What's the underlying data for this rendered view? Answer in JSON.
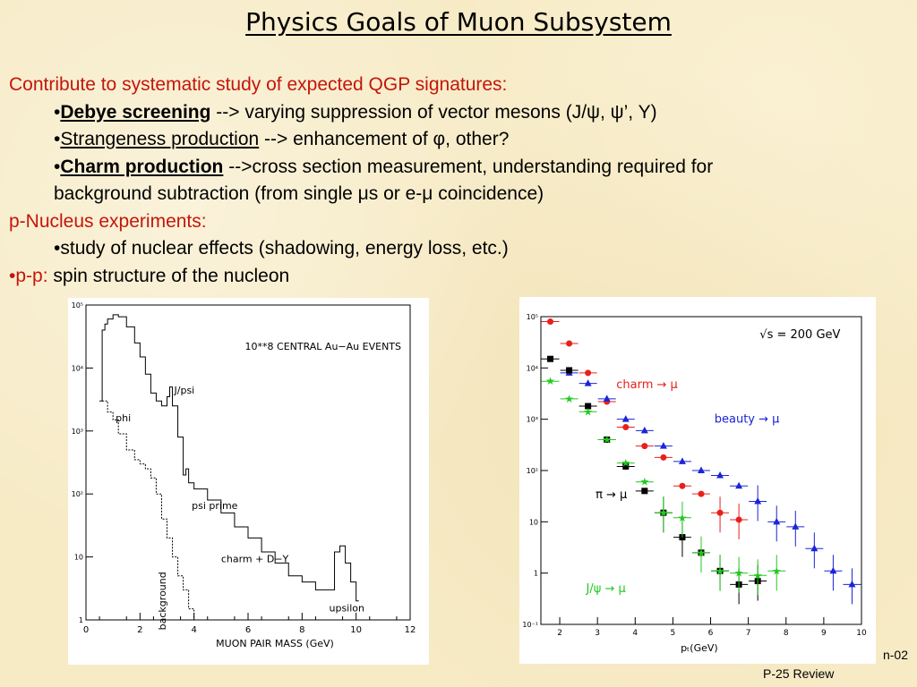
{
  "slide": {
    "title": "Physics Goals of Muon Subsystem",
    "intro": "Contribute to systematic study of expected QGP signatures:",
    "b1_term": "Debye screening",
    "b1_rest": "--> varying suppression of vector mesons (J/ψ, ψ’, Υ)",
    "b2_term": "Strangeness production",
    "b2_rest": "--> enhancement of φ, other?",
    "b3_term": "Charm production",
    "b3_rest": "-->cross section measurement, understanding required for",
    "b3_cont": "background subtraction (from single μs or e-μ coincidence)",
    "pnuc_heading": "p-Nucleus experiments:",
    "pnuc_bullet": "study of nuclear effects (shadowing, energy loss, etc.)",
    "pp_label": "p-p:",
    "pp_text": "spin structure of the nucleon",
    "bullet": "•",
    "footer_partial": "n-02",
    "footer_review": "P-25 Review"
  },
  "colors": {
    "red_text": "#c4160a",
    "charm": "#e8201c",
    "beauty": "#1a24d8",
    "pion": "#000000",
    "jpsi": "#22c81e"
  },
  "chart_data": [
    {
      "type": "line",
      "title": "",
      "annotation": "10**8 CENTRAL Au−Au EVENTS",
      "xlabel": "MUON PAIR MASS (GeV)",
      "xlim": [
        0,
        12
      ],
      "ylim_log": [
        1,
        100000
      ],
      "xticks": [
        "0",
        "2",
        "4",
        "6",
        "8",
        "10",
        "12"
      ],
      "yticks": [
        "1",
        "10",
        "10²",
        "10³",
        "10⁴",
        "10⁵"
      ],
      "series": [
        {
          "name": "total",
          "style": "solid",
          "x": [
            0.5,
            0.6,
            0.7,
            0.8,
            0.9,
            1.0,
            1.2,
            1.5,
            1.8,
            2.0,
            2.2,
            2.4,
            2.6,
            2.8,
            3.0,
            3.1,
            3.2,
            3.4,
            3.6,
            3.7,
            3.8,
            4.0,
            4.5,
            5.0,
            5.5,
            6.0,
            6.5,
            7.0,
            7.5,
            8.0,
            8.5,
            9.0,
            9.2,
            9.4,
            9.6,
            9.8,
            10.0
          ],
          "y": [
            3000,
            40000,
            50000,
            60000,
            60000,
            70000,
            65000,
            45000,
            25000,
            15000,
            8000,
            4000,
            3000,
            2500,
            3500,
            5000,
            2500,
            800,
            200,
            250,
            150,
            120,
            80,
            50,
            30,
            20,
            12,
            8,
            5,
            4,
            3,
            3,
            12,
            15,
            8,
            4,
            2
          ]
        },
        {
          "name": "background",
          "style": "dotted",
          "x": [
            0.6,
            0.8,
            1.0,
            1.2,
            1.5,
            1.8,
            2.0,
            2.2,
            2.4,
            2.6,
            2.8,
            3.0,
            3.2,
            3.4,
            3.6,
            3.8,
            4.0
          ],
          "y": [
            3000,
            2000,
            1500,
            900,
            500,
            350,
            300,
            250,
            180,
            100,
            40,
            20,
            10,
            5,
            3,
            1.5,
            1
          ]
        }
      ],
      "peak_labels": [
        "J/psi",
        "phi",
        "psi prime",
        "charm + D−Y",
        "upsilon",
        "background"
      ]
    },
    {
      "type": "scatter",
      "title": "",
      "annotation": "√s = 200 GeV",
      "xlabel": "pₜ(GeV)",
      "xlim": [
        1.5,
        10
      ],
      "ylim_log": [
        0.1,
        100000
      ],
      "xticks": [
        "2",
        "3",
        "4",
        "5",
        "6",
        "7",
        "8",
        "9",
        "10"
      ],
      "yticks": [
        "10⁻¹",
        "1",
        "10",
        "10²",
        "10³",
        "10⁴",
        "10⁵"
      ],
      "series": [
        {
          "name": "charm → μ",
          "marker": "circle",
          "color": "#e8201c",
          "x": [
            1.75,
            2.25,
            2.75,
            3.25,
            3.75,
            4.25,
            4.75,
            5.25,
            5.75,
            6.25,
            6.75
          ],
          "y": [
            80000,
            30000,
            8000,
            2200,
            700,
            300,
            180,
            50,
            35,
            15,
            11
          ]
        },
        {
          "name": "beauty → μ",
          "marker": "triangle",
          "color": "#1a24d8",
          "x": [
            2.25,
            2.75,
            3.25,
            3.75,
            4.25,
            4.75,
            5.25,
            5.75,
            6.25,
            6.75,
            7.25,
            7.75,
            8.25,
            8.75,
            9.25,
            9.75
          ],
          "y": [
            8000,
            5000,
            2500,
            1000,
            600,
            300,
            150,
            100,
            80,
            50,
            25,
            10,
            8,
            3,
            1.1,
            0.6
          ]
        },
        {
          "name": "π → μ",
          "marker": "square",
          "color": "#000000",
          "x": [
            1.75,
            2.25,
            2.75,
            3.25,
            3.75,
            4.25,
            4.75,
            5.25,
            5.75,
            6.25,
            6.75,
            7.25
          ],
          "y": [
            15000,
            9000,
            1800,
            400,
            120,
            40,
            15,
            5,
            2.5,
            1.1,
            0.6,
            0.7
          ]
        },
        {
          "name": "J/ψ → μ",
          "marker": "star",
          "color": "#22c81e",
          "x": [
            1.75,
            2.25,
            2.75,
            3.25,
            3.75,
            4.25,
            4.75,
            5.25,
            5.75,
            6.25,
            6.75,
            7.25,
            7.75
          ],
          "y": [
            5500,
            2500,
            1400,
            400,
            140,
            60,
            15,
            12,
            2.5,
            1.1,
            1.0,
            0.9,
            1.1
          ]
        }
      ]
    }
  ]
}
